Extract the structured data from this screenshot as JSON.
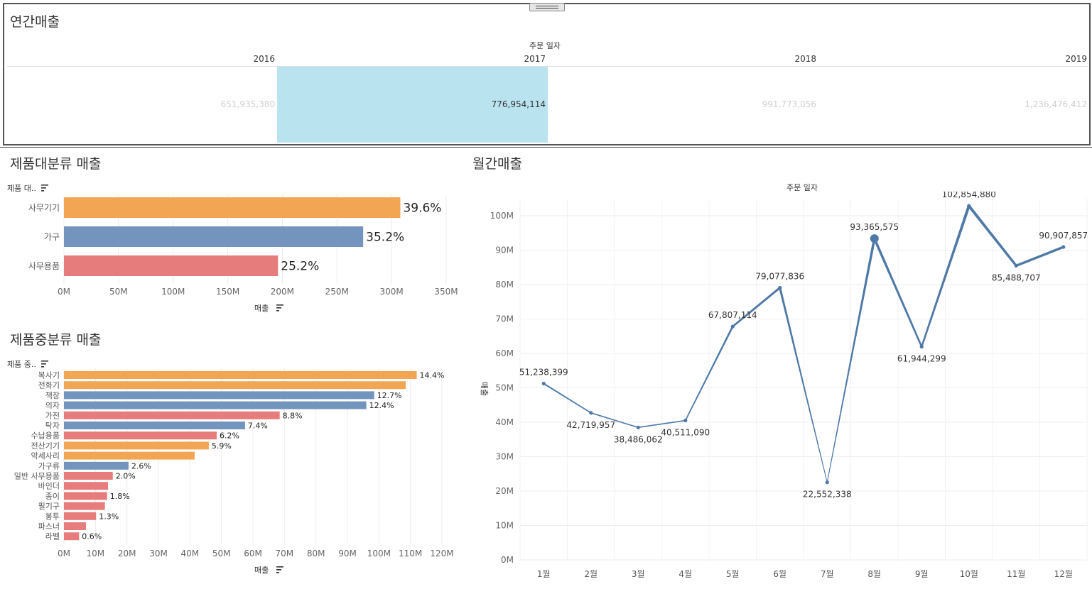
{
  "annual": {
    "title": "연간매출",
    "axis_title": "주문 일자",
    "years": [
      {
        "label": "2016",
        "value": "651,935,380",
        "selected": false
      },
      {
        "label": "2017",
        "value": "776,954,114",
        "selected": true
      },
      {
        "label": "2018",
        "value": "991,773,056",
        "selected": false
      },
      {
        "label": "2019",
        "value": "1,236,476,412",
        "selected": false
      }
    ]
  },
  "category": {
    "title": "제품대분류 매출",
    "header": "제품 대..",
    "axis_label": "매출",
    "ticks": [
      "0M",
      "50M",
      "100M",
      "150M",
      "200M",
      "250M",
      "300M",
      "350M"
    ]
  },
  "subcategory": {
    "title": "제품중분류 매출",
    "header": "제품 중..",
    "axis_label": "매출",
    "ticks": [
      "0M",
      "10M",
      "20M",
      "30M",
      "40M",
      "50M",
      "60M",
      "70M",
      "80M",
      "90M",
      "100M",
      "110M",
      "120M"
    ]
  },
  "monthly": {
    "title": "월간매출",
    "axis_title": "주문 일자",
    "y_axis_label": "매출",
    "ticks": [
      "0M",
      "10M",
      "20M",
      "30M",
      "40M",
      "50M",
      "60M",
      "70M",
      "80M",
      "90M",
      "100M"
    ]
  },
  "colors": {
    "orange": "#f2a654",
    "blue": "#7395bd",
    "red": "#e67c7b",
    "line": "#4e79a7",
    "highlight": "#bae3f0"
  },
  "chart_data": [
    {
      "id": "category",
      "type": "bar",
      "title": "제품대분류 매출",
      "xlabel": "매출",
      "ylabel": "제품 대..",
      "xlim": [
        0,
        350000000
      ],
      "categories": [
        "사무기기",
        "가구",
        "사무용품"
      ],
      "values": [
        308000000,
        274000000,
        196000000
      ],
      "labels": [
        "39.6%",
        "35.2%",
        "25.2%"
      ],
      "colors": [
        "orange",
        "blue",
        "red"
      ]
    },
    {
      "id": "subcategory",
      "type": "bar",
      "title": "제품중분류 매출",
      "xlabel": "매출",
      "ylabel": "제품 중..",
      "xlim": [
        0,
        120000000
      ],
      "categories": [
        "복사기",
        "전화기",
        "책장",
        "의자",
        "가전",
        "탁자",
        "수납용품",
        "전산기기",
        "악세사리",
        "가구류",
        "일반 사무용품",
        "바인더",
        "종이",
        "필기구",
        "봉투",
        "파스너",
        "라벨"
      ],
      "values": [
        112000000,
        108500000,
        98500000,
        96000000,
        68500000,
        57500000,
        48500000,
        46000000,
        41500000,
        20500000,
        15500000,
        14000000,
        13700000,
        13000000,
        10200000,
        7000000,
        4800000
      ],
      "labels": [
        "14.4%",
        "",
        "12.7%",
        "12.4%",
        "8.8%",
        "7.4%",
        "6.2%",
        "5.9%",
        "",
        "2.6%",
        "2.0%",
        "",
        "1.8%",
        "",
        "1.3%",
        "",
        "0.6%"
      ],
      "colors": [
        "orange",
        "orange",
        "blue",
        "blue",
        "red",
        "blue",
        "red",
        "orange",
        "orange",
        "blue",
        "red",
        "red",
        "red",
        "red",
        "red",
        "red",
        "red"
      ]
    },
    {
      "id": "monthly",
      "type": "line",
      "title": "월간매출",
      "xlabel": "주문 일자",
      "ylabel": "매출",
      "ylim": [
        0,
        110000000
      ],
      "categories": [
        "1월",
        "2월",
        "3월",
        "4월",
        "5월",
        "6월",
        "7월",
        "8월",
        "9월",
        "10월",
        "11월",
        "12월"
      ],
      "values": [
        51238399,
        42719957,
        38486062,
        40511090,
        67807114,
        79077836,
        22552338,
        93365575,
        61944299,
        102854880,
        85488707,
        90907857
      ],
      "labels": [
        "51,238,399",
        "42,719,957",
        "38,486,062",
        "40,511,090",
        "67,807,114",
        "79,077,836",
        "22,552,338",
        "93,365,575",
        "61,944,299",
        "102,854,880",
        "85,488,707",
        "90,907,857"
      ]
    }
  ]
}
